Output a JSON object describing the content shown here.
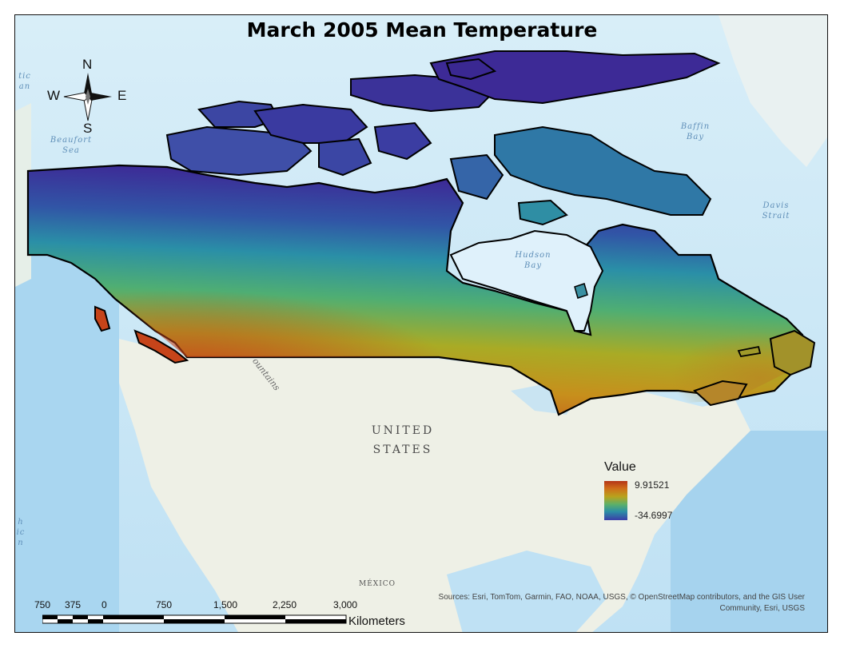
{
  "title": "March 2005 Mean Temperature",
  "compass": {
    "n": "N",
    "s": "S",
    "e": "E",
    "w": "W"
  },
  "legend": {
    "title": "Value",
    "max": "9.91521",
    "min": "-34.6997",
    "colors": [
      "#b43417",
      "#cf6a19",
      "#b9a31d",
      "#5bb06a",
      "#2c8fa5",
      "#3b3da8"
    ]
  },
  "labels": {
    "beaufort": [
      "Beaufort",
      "Sea"
    ],
    "baffin": [
      "Baffin",
      "Bay"
    ],
    "davis": [
      "Davis",
      "Strait"
    ],
    "hudson": [
      "Hudson",
      "Bay"
    ],
    "usa": [
      "UNITED",
      "STATES"
    ],
    "mexico": "MÉXICO",
    "mountains": "ountains",
    "arctic_fragment": [
      "tic",
      "an"
    ],
    "pacific_fragment": [
      "h",
      "ic",
      "n"
    ]
  },
  "scale": {
    "ticks": [
      "750",
      "375",
      "0",
      "750",
      "1,500",
      "2,250",
      "3,000"
    ],
    "unit": "Kilometers"
  },
  "attribution": "Sources: Esri, TomTom, Garmin, FAO, NOAA, USGS, © OpenStreetMap contributors, and the GIS User Community, Esri, USGS"
}
